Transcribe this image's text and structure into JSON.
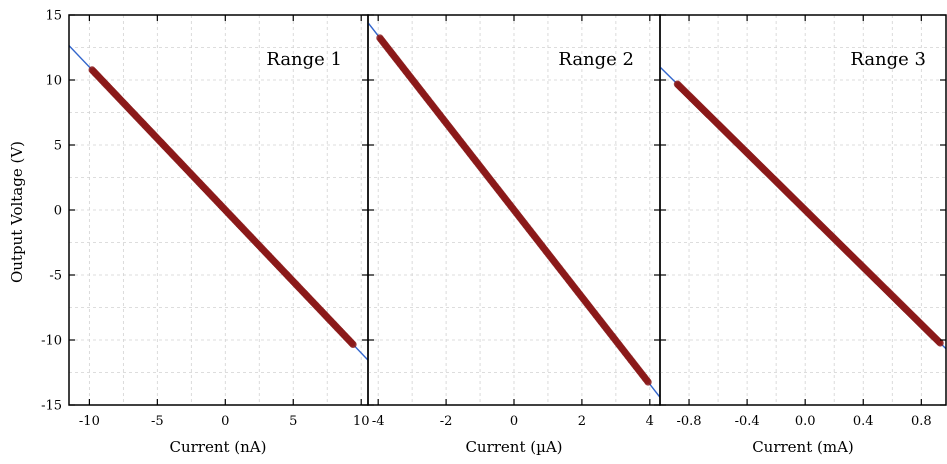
{
  "chart_data": [
    {
      "type": "scatter",
      "title": "Range 1",
      "xlabel": "Current (nA)",
      "ylabel": "Output Voltage (V)",
      "xlim": [
        -11.5,
        10.5
      ],
      "ylim": [
        -15,
        15
      ],
      "x_ticks": [
        "-10",
        "-5",
        "0",
        "5",
        "10"
      ],
      "y_ticks": [
        "15",
        "10",
        "5",
        "0",
        "-5",
        "-10",
        "-15"
      ],
      "grid": true,
      "series": [
        {
          "kind": "points",
          "x_range": [
            -9.8,
            9.4
          ],
          "slope": -1.1,
          "intercept": 0,
          "color": "#8b1a1a"
        },
        {
          "kind": "fit",
          "x_range": [
            -11.5,
            10.5
          ],
          "slope": -1.1,
          "intercept": 0,
          "color": "#3366cc"
        }
      ]
    },
    {
      "type": "scatter",
      "title": "Range 2",
      "xlabel": "Current (µA)",
      "ylabel": "",
      "xlim": [
        -4.3,
        4.3
      ],
      "ylim": [
        -15,
        15
      ],
      "x_ticks": [
        "-4",
        "-2",
        "0",
        "2",
        "4"
      ],
      "grid": true,
      "series": [
        {
          "kind": "points",
          "x_range": [
            -3.95,
            3.95
          ],
          "slope": -3.35,
          "intercept": 0,
          "color": "#8b1a1a"
        },
        {
          "kind": "fit",
          "x_range": [
            -4.3,
            4.3
          ],
          "slope": -3.35,
          "intercept": 0,
          "color": "#3366cc"
        }
      ]
    },
    {
      "type": "scatter",
      "title": "Range 3",
      "xlabel": "Current (mA)",
      "ylabel": "",
      "xlim": [
        -1.0,
        0.97
      ],
      "ylim": [
        -15,
        15
      ],
      "x_ticks": [
        "-0.8",
        "-0.4",
        "0.0",
        "0.4",
        "0.8"
      ],
      "grid": true,
      "series": [
        {
          "kind": "points",
          "x_range": [
            -0.88,
            0.93
          ],
          "slope": -11.0,
          "intercept": 0,
          "color": "#8b1a1a"
        },
        {
          "kind": "fit",
          "x_range": [
            -1.0,
            0.97
          ],
          "slope": -11.0,
          "intercept": 0,
          "color": "#3366cc"
        }
      ]
    }
  ]
}
